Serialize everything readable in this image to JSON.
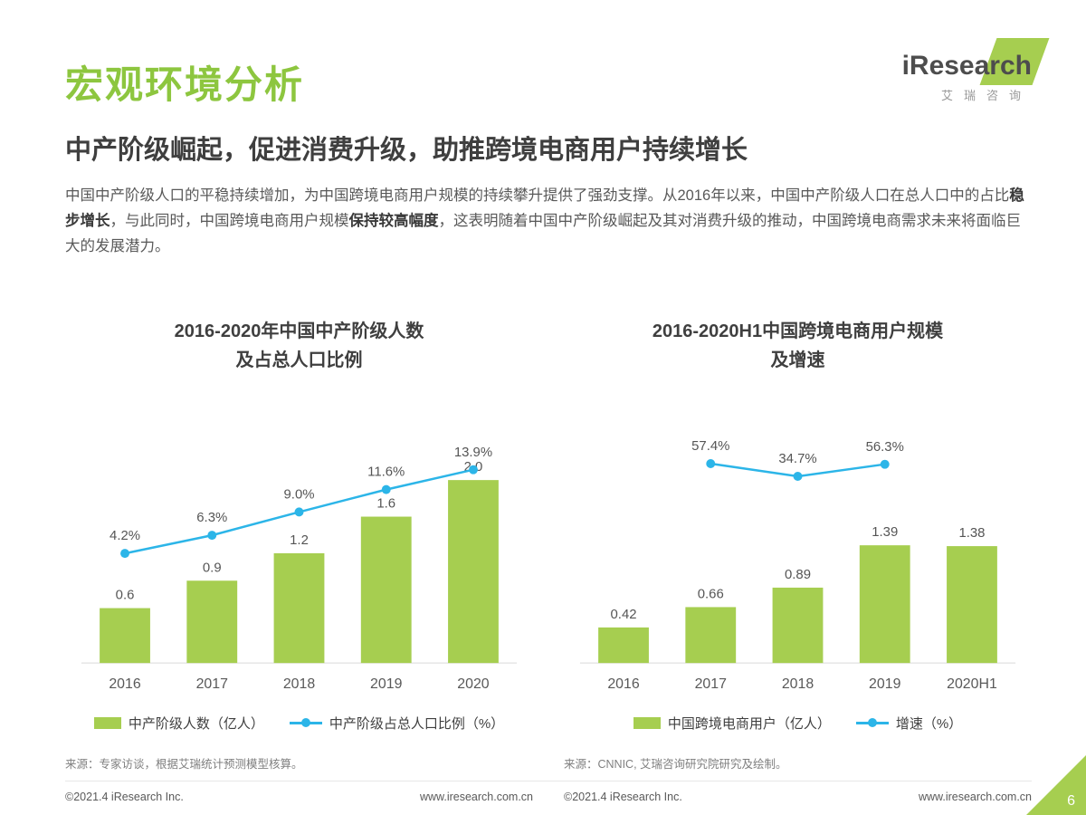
{
  "header": {
    "title": "宏观环境分析",
    "subtitle": "中产阶级崛起，促进消费升级，助推跨境电商用户持续增长",
    "paragraph_segments": [
      {
        "text": "中国中产阶级人口的平稳持续增加，为中国跨境电商用户规模的持续攀升提供了强劲支撑。从2016年以来，中国中产阶级人口在总人口中的占比",
        "bold": false
      },
      {
        "text": "稳步增长",
        "bold": true
      },
      {
        "text": "，与此同时，中国跨境电商用户规模",
        "bold": false
      },
      {
        "text": "保持较高幅度",
        "bold": true
      },
      {
        "text": "，这表明随着中国中产阶级崛起及其对消费升级的推动，中国跨境电商需求未来将面临巨大的发展潜力。",
        "bold": false
      }
    ]
  },
  "logo": {
    "brand": "iResearch",
    "brand_cn": "艾瑞咨询"
  },
  "colors": {
    "title_green": "#8dc63f",
    "green": "#a6ce50",
    "blue": "#2cb5e8",
    "axis": "#d9d9d9"
  },
  "chart_data": [
    {
      "type": "bar",
      "title_line1": "2016-2020年中国中产阶级人数",
      "title_line2": "及占总人口比例",
      "categories": [
        "2016",
        "2017",
        "2018",
        "2019",
        "2020"
      ],
      "series": [
        {
          "name": "中产阶级人数（亿人）",
          "type": "bar",
          "values": [
            0.6,
            0.9,
            1.2,
            1.6,
            2.0
          ],
          "labels": [
            "0.6",
            "0.9",
            "1.2",
            "1.6",
            "2.0"
          ],
          "ylim": [
            0,
            2.5
          ]
        },
        {
          "name": "中产阶级占总人口比例（%）",
          "type": "line",
          "values": [
            4.2,
            6.3,
            9.0,
            11.6,
            13.9
          ],
          "labels": [
            "4.2%",
            "6.3%",
            "9.0%",
            "11.6%",
            "13.9%"
          ],
          "ylim": [
            -8.5,
            18
          ]
        }
      ],
      "grid": false,
      "legend_position": "bottom",
      "source": "来源：专家访谈，根据艾瑞统计预测模型核算。"
    },
    {
      "type": "bar",
      "title_line1": "2016-2020H1中国跨境电商用户规模",
      "title_line2": "及增速",
      "categories": [
        "2016",
        "2017",
        "2018",
        "2019",
        "2020H1"
      ],
      "series": [
        {
          "name": "中国跨境电商用户（亿人）",
          "type": "bar",
          "values": [
            0.42,
            0.66,
            0.89,
            1.39,
            1.38
          ],
          "labels": [
            "0.42",
            "0.66",
            "0.89",
            "1.39",
            "1.38"
          ],
          "ylim": [
            0,
            2.7
          ]
        },
        {
          "name": "增速（%）",
          "type": "line",
          "values": [
            null,
            57.4,
            34.7,
            56.3,
            null
          ],
          "labels": [
            null,
            "57.4%",
            "34.7%",
            "56.3%",
            null
          ],
          "ylim": [
            -300,
            110
          ]
        }
      ],
      "grid": false,
      "legend_position": "bottom",
      "source": "来源：CNNIC, 艾瑞咨询研究院研究及绘制。"
    }
  ],
  "footer": {
    "copyright": "©2021.4 iResearch Inc.",
    "website": "www.iresearch.com.cn",
    "page_number": "6"
  }
}
